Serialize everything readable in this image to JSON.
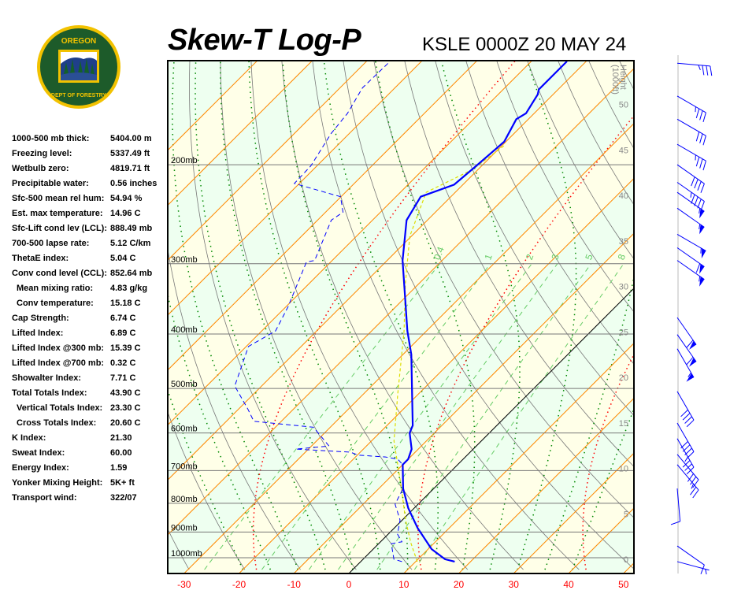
{
  "header": {
    "title": "Skew-T Log-P",
    "subtitle": "KSLE 0000Z 20 MAY 24",
    "logo_text": [
      "OREGON",
      "DEPARTMENT OF FORESTRY"
    ]
  },
  "stats": [
    {
      "label": "1000-500 mb thick:",
      "value": "5404.00 m"
    },
    {
      "label": "Freezing level:",
      "value": "5337.49 ft"
    },
    {
      "label": "Wetbulb zero:",
      "value": "4819.71 ft"
    },
    {
      "label": "Precipitable water:",
      "value": "0.56 inches"
    },
    {
      "label": "Sfc-500 mean rel hum:",
      "value": "54.94 %"
    },
    {
      "label": "Est. max temperature:",
      "value": "14.96 C"
    },
    {
      "label": "Sfc-Lift cond lev (LCL):",
      "value": "888.49 mb"
    },
    {
      "label": "700-500 lapse rate:",
      "value": "5.12 C/km"
    },
    {
      "label": "ThetaE index:",
      "value": "5.04 C"
    },
    {
      "label": "Conv cond level (CCL):",
      "value": "852.64 mb"
    },
    {
      "label": "Mean mixing ratio:",
      "value": "4.83 g/kg",
      "indent": true
    },
    {
      "label": "Conv temperature:",
      "value": "15.18 C",
      "indent": true
    },
    {
      "label": "Cap Strength:",
      "value": "6.74 C"
    },
    {
      "label": "Lifted Index:",
      "value": "6.89 C"
    },
    {
      "label": "Lifted Index @300 mb:",
      "value": "15.39 C"
    },
    {
      "label": "Lifted Index @700 mb:",
      "value": "0.32 C"
    },
    {
      "label": "Showalter Index:",
      "value": "7.71 C"
    },
    {
      "label": "Total Totals Index:",
      "value": "43.90 C"
    },
    {
      "label": "Vertical Totals Index:",
      "value": "23.30 C",
      "indent": true
    },
    {
      "label": "Cross Totals Index:",
      "value": "20.60 C",
      "indent": true
    },
    {
      "label": "K Index:",
      "value": "21.30"
    },
    {
      "label": "Sweat Index:",
      "value": "60.00"
    },
    {
      "label": "Energy Index:",
      "value": "1.59"
    },
    {
      "label": "Yonker Mixing Height:",
      "value": "5K+ ft"
    },
    {
      "label": "Transport wind:",
      "value": "322/07"
    }
  ],
  "chart_data": {
    "type": "skew-t",
    "xlabel_ticks": [
      -30,
      -20,
      -10,
      0,
      10,
      20,
      30,
      40,
      50
    ],
    "xlim": [
      -30,
      50
    ],
    "pressure_levels": [
      {
        "p": 200,
        "label": "200mb"
      },
      {
        "p": 300,
        "label": "300mb"
      },
      {
        "p": 400,
        "label": "400mb"
      },
      {
        "p": 500,
        "label": "500mb"
      },
      {
        "p": 600,
        "label": "600mb"
      },
      {
        "p": 700,
        "label": "700mb"
      },
      {
        "p": 800,
        "label": "800mb"
      },
      {
        "p": 900,
        "label": "900mb"
      },
      {
        "p": 1000,
        "label": "1000mb"
      }
    ],
    "height_axis": {
      "label": "Height",
      "unit": "(1000ft)",
      "ticks": [
        0,
        5,
        10,
        15,
        20,
        25,
        30,
        35,
        40,
        45,
        50
      ]
    },
    "mixing_ratio_labels": [
      "0.4",
      "1",
      "2",
      "3",
      "5",
      "8"
    ],
    "mixing_ratios": [
      0.4,
      1,
      2,
      3,
      5,
      8
    ],
    "temperature": [
      [
        1016,
        17.1
      ],
      [
        1006,
        14.9
      ],
      [
        965,
        10.6
      ],
      [
        885,
        4.2
      ],
      [
        816,
        -1.1
      ],
      [
        753,
        -5.6
      ],
      [
        683,
        -10.0
      ],
      [
        668,
        -10.0
      ],
      [
        641,
        -11.2
      ],
      [
        600,
        -14.5
      ],
      [
        582,
        -15.3
      ],
      [
        435,
        -28.5
      ],
      [
        395,
        -33.5
      ],
      [
        296,
        -47.2
      ],
      [
        251,
        -53.8
      ],
      [
        228,
        -55.5
      ],
      [
        217,
        -51.6
      ],
      [
        201,
        -51.0
      ],
      [
        182,
        -50.3
      ],
      [
        166,
        -52.2
      ],
      [
        162,
        -51.5
      ],
      [
        150,
        -52.8
      ],
      [
        147,
        -53.5
      ],
      [
        131,
        -53.5
      ]
    ],
    "dewpoint": [
      [
        1016,
        7.5
      ],
      [
        1006,
        5.6
      ],
      [
        944,
        2.3
      ],
      [
        937,
        3.9
      ],
      [
        908,
        1.7
      ],
      [
        857,
        -0.4
      ],
      [
        803,
        -4.2
      ],
      [
        753,
        -5.6
      ],
      [
        683,
        -10.0
      ],
      [
        668,
        -11.9
      ],
      [
        662,
        -14.5
      ],
      [
        657,
        -19.8
      ],
      [
        649,
        -21.8
      ],
      [
        645,
        -26.8
      ],
      [
        641,
        -32.3
      ],
      [
        633,
        -26.8
      ],
      [
        599,
        -31.3
      ],
      [
        586,
        -33.1
      ],
      [
        572,
        -45.0
      ],
      [
        545,
        -48.2
      ],
      [
        495,
        -54.9
      ],
      [
        421,
        -59.6
      ],
      [
        395,
        -57.5
      ],
      [
        358,
        -59.6
      ],
      [
        298,
        -64.4
      ],
      [
        296,
        -63.2
      ],
      [
        251,
        -67.5
      ],
      [
        243,
        -66.8
      ],
      [
        228,
        -70.1
      ],
      [
        216,
        -80.9
      ],
      [
        201,
        -81.1
      ],
      [
        176,
        -83.3
      ],
      [
        162,
        -84.0
      ],
      [
        146,
        -85.9
      ],
      [
        131,
        -85.7
      ]
    ],
    "parcel": [
      [
        1016,
        10.3
      ],
      [
        944,
        5.9
      ],
      [
        857,
        0.6
      ],
      [
        753,
        -5.9
      ],
      [
        620,
        -15.9
      ],
      [
        511,
        -23.8
      ],
      [
        395,
        -34.1
      ],
      [
        326,
        -42.4
      ],
      [
        268,
        -50.3
      ],
      [
        224,
        -55.3
      ],
      [
        204,
        -51.0
      ],
      [
        185,
        -49.6
      ]
    ],
    "winds": [
      {
        "p": 132,
        "dir": 275,
        "spd": 35
      },
      {
        "p": 151,
        "dir": 300,
        "spd": 35
      },
      {
        "p": 166,
        "dir": 300,
        "spd": 30
      },
      {
        "p": 184,
        "dir": 300,
        "spd": 35
      },
      {
        "p": 200,
        "dir": 305,
        "spd": 40
      },
      {
        "p": 215,
        "dir": 305,
        "spd": 45
      },
      {
        "p": 224,
        "dir": 305,
        "spd": 55
      },
      {
        "p": 239,
        "dir": 305,
        "spd": 55
      },
      {
        "p": 266,
        "dir": 300,
        "spd": 55
      },
      {
        "p": 281,
        "dir": 305,
        "spd": 60
      },
      {
        "p": 296,
        "dir": 305,
        "spd": 55
      },
      {
        "p": 374,
        "dir": 325,
        "spd": 60
      },
      {
        "p": 401,
        "dir": 325,
        "spd": 60
      },
      {
        "p": 425,
        "dir": 330,
        "spd": 55
      },
      {
        "p": 506,
        "dir": 330,
        "spd": 40
      },
      {
        "p": 576,
        "dir": 330,
        "spd": 40
      },
      {
        "p": 614,
        "dir": 330,
        "spd": 35
      },
      {
        "p": 655,
        "dir": 320,
        "spd": 30
      },
      {
        "p": 683,
        "dir": 320,
        "spd": 25
      },
      {
        "p": 753,
        "dir": 355,
        "spd": 10
      },
      {
        "p": 953,
        "dir": 305,
        "spd": 10
      },
      {
        "p": 1016,
        "dir": 285,
        "spd": 5
      }
    ],
    "colors": {
      "temperature": "#0000ff",
      "dewpoint": "#0000ff",
      "parcel": "#dddd00",
      "isotherm": "#ff8800",
      "dry_adiabat": "#777777",
      "moist_adiabat": "#008800",
      "mixing_ratio": "#66cc66",
      "band_yellow": "#ffffe8",
      "band_green": "#eefff0",
      "x_ticks": "#ff0000"
    }
  }
}
